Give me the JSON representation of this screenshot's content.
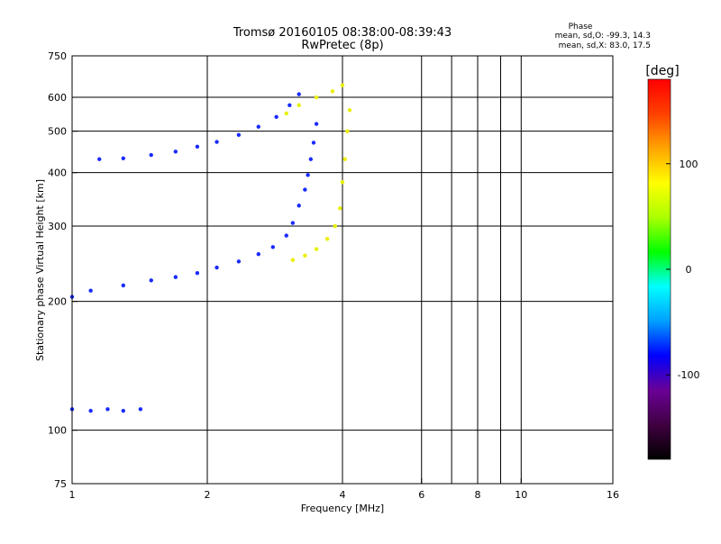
{
  "header": {
    "title_line1": "Tromsø 20160105 08:38:00-08:39:43",
    "title_line2": "RwPretec (8p)"
  },
  "phase_info": {
    "label": "Phase",
    "line_o": "mean, sd,O: -99.3, 14.3",
    "line_x": "mean, sd,X:  83.0, 17.5"
  },
  "colorbar": {
    "unit_label": "[deg]",
    "range": [
      -180,
      180
    ],
    "ticks": [
      {
        "value": 100,
        "label": "100"
      },
      {
        "value": 0,
        "label": "0"
      },
      {
        "value": -100,
        "label": "-100"
      }
    ],
    "stops": [
      "#000000",
      "#400040",
      "#6a0096",
      "#0000ff",
      "#00a0ff",
      "#00ffff",
      "#00ff00",
      "#aaff00",
      "#ffff00",
      "#ffa500",
      "#ff4000",
      "#ff0000"
    ]
  },
  "chart_data": {
    "type": "scatter",
    "xlabel": "Frequency [MHz]",
    "ylabel": "Stationary phase Virtual Height [km]",
    "xscale": "log",
    "yscale": "log",
    "xlim": [
      1,
      16
    ],
    "ylim": [
      75,
      750
    ],
    "grid": true,
    "x_ticks": [
      {
        "value": 1,
        "label": "1"
      },
      {
        "value": 2,
        "label": "2"
      },
      {
        "value": 4,
        "label": "4"
      },
      {
        "value": 6,
        "label": "6"
      },
      {
        "value": 8,
        "label": "8"
      },
      {
        "value": 10,
        "label": "10"
      },
      {
        "value": 16,
        "label": "16"
      }
    ],
    "x_gridlines": [
      2,
      4,
      6,
      7,
      8,
      9,
      10
    ],
    "y_ticks": [
      {
        "value": 75,
        "label": "75"
      },
      {
        "value": 100,
        "label": "100"
      },
      {
        "value": 200,
        "label": "200"
      },
      {
        "value": 300,
        "label": "300"
      },
      {
        "value": 400,
        "label": "400"
      },
      {
        "value": 500,
        "label": "500"
      },
      {
        "value": 600,
        "label": "600"
      },
      {
        "value": 750,
        "label": "750"
      }
    ],
    "y_gridlines": [
      100,
      200,
      300,
      400,
      500,
      600
    ],
    "color_colors": {
      "O": "#1a2bff",
      "X": "#e8f000"
    },
    "traces": [
      {
        "mode": "O",
        "points": [
          [
            1.15,
            430
          ],
          [
            1.3,
            432
          ],
          [
            1.5,
            440
          ],
          [
            1.7,
            448
          ],
          [
            1.9,
            460
          ],
          [
            2.1,
            472
          ],
          [
            2.35,
            490
          ],
          [
            2.6,
            512
          ],
          [
            2.85,
            540
          ],
          [
            3.05,
            575
          ],
          [
            3.2,
            610
          ]
        ]
      },
      {
        "mode": "O",
        "points": [
          [
            1.0,
            205
          ],
          [
            1.1,
            212
          ],
          [
            1.3,
            218
          ],
          [
            1.5,
            224
          ],
          [
            1.7,
            228
          ],
          [
            1.9,
            233
          ],
          [
            2.1,
            240
          ],
          [
            2.35,
            248
          ],
          [
            2.6,
            258
          ],
          [
            2.8,
            268
          ],
          [
            3.0,
            285
          ],
          [
            3.1,
            305
          ],
          [
            3.2,
            335
          ],
          [
            3.3,
            365
          ],
          [
            3.35,
            395
          ],
          [
            3.4,
            430
          ],
          [
            3.45,
            470
          ],
          [
            3.5,
            520
          ]
        ]
      },
      {
        "mode": "O",
        "points": [
          [
            1.0,
            112
          ],
          [
            1.1,
            111
          ],
          [
            1.2,
            112
          ],
          [
            1.3,
            111
          ],
          [
            1.42,
            112
          ]
        ]
      },
      {
        "mode": "X",
        "points": [
          [
            3.1,
            250
          ],
          [
            3.3,
            256
          ],
          [
            3.5,
            265
          ],
          [
            3.7,
            280
          ],
          [
            3.85,
            300
          ],
          [
            3.95,
            330
          ],
          [
            4.0,
            380
          ],
          [
            4.05,
            430
          ],
          [
            4.1,
            500
          ],
          [
            4.15,
            560
          ]
        ]
      },
      {
        "mode": "X",
        "points": [
          [
            3.0,
            550
          ],
          [
            3.2,
            575
          ],
          [
            3.5,
            600
          ],
          [
            3.8,
            620
          ],
          [
            4.0,
            640
          ]
        ]
      }
    ]
  }
}
